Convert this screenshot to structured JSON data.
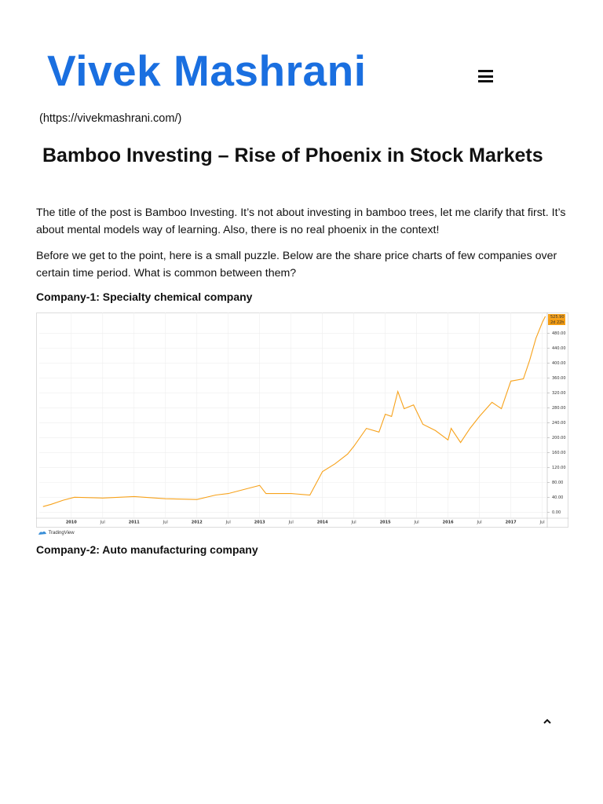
{
  "header": {
    "logo": "Vivek Mashrani",
    "url": "(https://vivekmashrani.com/)"
  },
  "article": {
    "title": "Bamboo Investing – Rise of Phoenix in Stock Markets",
    "paragraphs": [
      "The title of the post is Bamboo Investing. It’s not about investing in bamboo trees, let me clarify that first. It’s about mental models way of learning. Also, there is no real phoenix in the context!",
      "Before we get to the point, here is a small puzzle. Below are the share price charts of few companies over certain time period. What is common between them?"
    ],
    "sections": [
      {
        "label": "Company-1:",
        "description": "Specialty chemical company"
      },
      {
        "label": "Company-2:",
        "description": "Auto manufacturing company"
      }
    ],
    "chart_source": "TradingView"
  },
  "chart_data": {
    "type": "line",
    "x": [
      2009.55,
      2009.68,
      2009.87,
      2010.05,
      2010.5,
      2011,
      2011.5,
      2012,
      2012.3,
      2012.5,
      2012.8,
      2013,
      2013.1,
      2013.5,
      2013.8,
      2014,
      2014.2,
      2014.4,
      2014.5,
      2014.7,
      2014.9,
      2015,
      2015.1,
      2015.2,
      2015.3,
      2015.45,
      2015.6,
      2015.8,
      2016,
      2016.05,
      2016.2,
      2016.35,
      2016.5,
      2016.7,
      2016.85,
      2017,
      2017.2,
      2017.3,
      2017.4,
      2017.5,
      2017.55
    ],
    "values": [
      15,
      21,
      32,
      40,
      38,
      42,
      36,
      34,
      46,
      50,
      63,
      72,
      50,
      50,
      46,
      109,
      130,
      156,
      177,
      225,
      215,
      263,
      257,
      324,
      278,
      288,
      236,
      219,
      194,
      225,
      187,
      225,
      257,
      295,
      278,
      352,
      358,
      408,
      467,
      509,
      525.9
    ],
    "color": "#f7a21b",
    "xlim": [
      2009.49,
      2017.58
    ],
    "ylim": [
      -12,
      532
    ],
    "xticks": [
      2010,
      {
        "value": 2010.5,
        "label": "Jul"
      },
      2011,
      {
        "value": 2011.5,
        "label": "Jul"
      },
      2012,
      {
        "value": 2012.5,
        "label": "Jul"
      },
      2013,
      {
        "value": 2013.5,
        "label": "Jul"
      },
      2014,
      {
        "value": 2014.5,
        "label": "Jul"
      },
      2015,
      {
        "value": 2015.5,
        "label": "Jul"
      },
      2016,
      {
        "value": 2016.5,
        "label": "Jul"
      },
      2017,
      {
        "value": 2017.5,
        "label": "Jul"
      }
    ],
    "yticks": [
      {
        "value": 0,
        "label": "0.00"
      },
      {
        "value": 40,
        "label": "40.00"
      },
      {
        "value": 80,
        "label": "80.00"
      },
      {
        "value": 120,
        "label": "120.00"
      },
      {
        "value": 160,
        "label": "160.00"
      },
      {
        "value": 200,
        "label": "200.00"
      },
      {
        "value": 240,
        "label": "240.00"
      },
      {
        "value": 280,
        "label": "280.00"
      },
      {
        "value": 320,
        "label": "320.00"
      },
      {
        "value": 360,
        "label": "360.00"
      },
      {
        "value": 400,
        "label": "400.00"
      },
      {
        "value": 440,
        "label": "440.00"
      },
      {
        "value": 480,
        "label": "480.00"
      }
    ],
    "annotations": [
      "525.90",
      "2d 22h"
    ],
    "grid": true
  }
}
